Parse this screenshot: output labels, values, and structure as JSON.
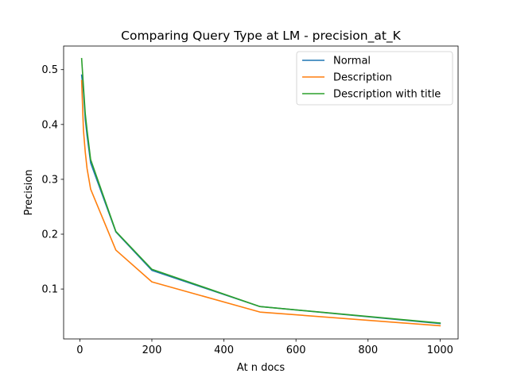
{
  "chart_data": {
    "type": "line",
    "title": "Comparing Query Type at LM - precision_at_K",
    "xlabel": "At n docs",
    "ylabel": "Precision",
    "xlim": [
      -45,
      1050
    ],
    "ylim": [
      0.009,
      0.543
    ],
    "xticks": [
      0,
      200,
      400,
      600,
      800,
      1000
    ],
    "yticks": [
      0.1,
      0.2,
      0.3,
      0.4,
      0.5
    ],
    "xtick_labels": [
      "0",
      "200",
      "400",
      "600",
      "800",
      "1000"
    ],
    "ytick_labels": [
      "0.1",
      "0.2",
      "0.3",
      "0.4",
      "0.5"
    ],
    "grid": false,
    "legend_position": "upper right",
    "x": [
      5,
      10,
      15,
      20,
      30,
      100,
      200,
      500,
      1000
    ],
    "series": [
      {
        "name": "Normal",
        "color": "#1f77b4",
        "values": [
          0.49,
          0.46,
          0.41,
          0.38,
          0.33,
          0.204,
          0.134,
          0.068,
          0.037
        ]
      },
      {
        "name": "Description",
        "color": "#ff7f0e",
        "values": [
          0.48,
          0.39,
          0.35,
          0.32,
          0.282,
          0.171,
          0.113,
          0.058,
          0.033
        ]
      },
      {
        "name": "Description with title",
        "color": "#2ca02c",
        "values": [
          0.52,
          0.47,
          0.42,
          0.39,
          0.336,
          0.205,
          0.136,
          0.068,
          0.038
        ]
      }
    ]
  }
}
